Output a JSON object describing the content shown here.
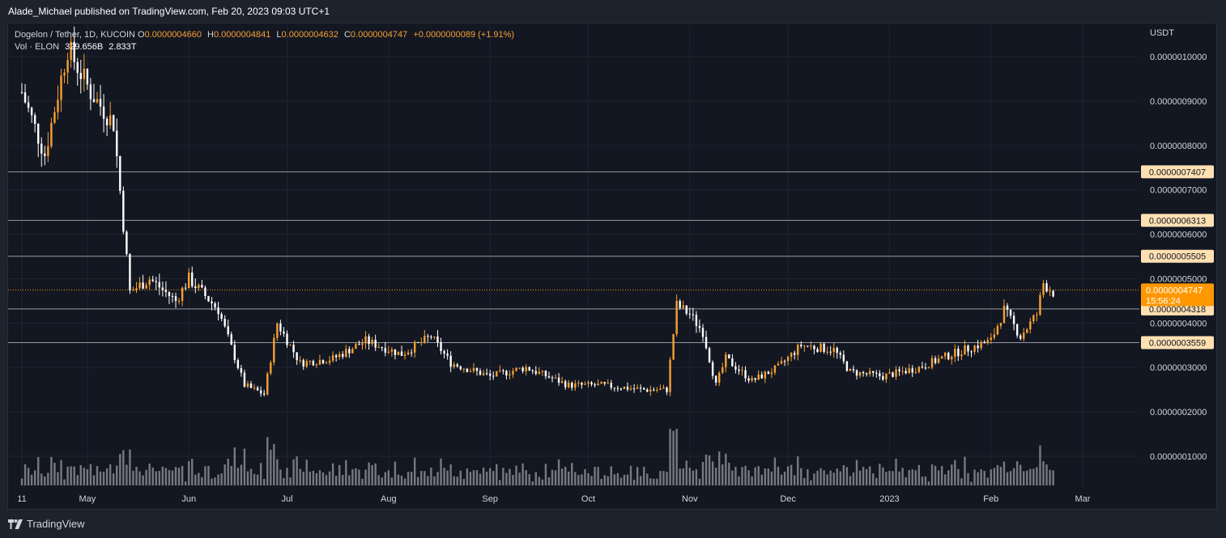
{
  "header": {
    "publisher_line": "Alade_Michael published on TradingView.com, Feb 20, 2023 09:03 UTC+1"
  },
  "legend": {
    "symbol": "Dogelon / Tether, 1D, KUCOIN",
    "open_label": "O",
    "open": "0.0000004660",
    "high_label": "H",
    "high": "0.0000004841",
    "low_label": "L",
    "low": "0.0000004632",
    "close_label": "C",
    "close": "0.0000004747",
    "change": "+0.0000000089 (+1.91%)",
    "vol_label": "Vol · ELON",
    "vol1": "329.656B",
    "vol2": "2.833T"
  },
  "footer": {
    "brand": "TradingView"
  },
  "colors": {
    "background": "#131722",
    "up": "#f7a030",
    "down": "#ffffff",
    "hline": "#9598a1",
    "current_price": "#ff9800",
    "level_label_bg": "#ffe0b2",
    "volume": "#9a9aa0"
  },
  "chart_data": {
    "type": "candlestick",
    "title": "Dogelon / Tether, 1D, KUCOIN",
    "y_unit": "USDT",
    "ylim": [
      0.0,
      1.02e-06
    ],
    "y_ticks": [
      "0.0000010000",
      "0.0000009000",
      "0.0000008000",
      "0.0000007000",
      "0.0000006000",
      "0.0000005000",
      "0.0000004000",
      "0.0000003000",
      "0.0000002000",
      "0.0000001000"
    ],
    "x_tick_labels": [
      "11",
      "May",
      "Jun",
      "Jul",
      "Aug",
      "Sep",
      "Oct",
      "Nov",
      "Dec",
      "2023",
      "Feb",
      "Mar"
    ],
    "horizontal_levels": [
      "0.0000007407",
      "0.0000006313",
      "0.0000005505",
      "0.0000004318",
      "0.0000003559"
    ],
    "current_price": {
      "value": "0.0000004747",
      "countdown": "15:56:24"
    },
    "grid": true,
    "approx_close_path": [
      {
        "date": "2022-04-11",
        "close": 9.2e-07
      },
      {
        "date": "2022-04-18",
        "close": 7.8e-07
      },
      {
        "date": "2022-04-25",
        "close": 1.02e-06
      },
      {
        "date": "2022-05-02",
        "close": 9.2e-07
      },
      {
        "date": "2022-05-09",
        "close": 8.5e-07
      },
      {
        "date": "2022-05-14",
        "close": 4.7e-07
      },
      {
        "date": "2022-05-20",
        "close": 5e-07
      },
      {
        "date": "2022-05-28",
        "close": 4.5e-07
      },
      {
        "date": "2022-06-01",
        "close": 5e-07
      },
      {
        "date": "2022-06-10",
        "close": 4.3e-07
      },
      {
        "date": "2022-06-18",
        "close": 2.6e-07
      },
      {
        "date": "2022-06-24",
        "close": 2.4e-07
      },
      {
        "date": "2022-06-28",
        "close": 4e-07
      },
      {
        "date": "2022-07-05",
        "close": 3.1e-07
      },
      {
        "date": "2022-07-15",
        "close": 3.2e-07
      },
      {
        "date": "2022-07-25",
        "close": 3.6e-07
      },
      {
        "date": "2022-08-05",
        "close": 3.3e-07
      },
      {
        "date": "2022-08-14",
        "close": 3.7e-07
      },
      {
        "date": "2022-08-20",
        "close": 3.1e-07
      },
      {
        "date": "2022-09-01",
        "close": 2.8e-07
      },
      {
        "date": "2022-09-12",
        "close": 3e-07
      },
      {
        "date": "2022-09-25",
        "close": 2.6e-07
      },
      {
        "date": "2022-10-05",
        "close": 2.6e-07
      },
      {
        "date": "2022-10-18",
        "close": 2.5e-07
      },
      {
        "date": "2022-10-25",
        "close": 2.5e-07
      },
      {
        "date": "2022-10-28",
        "close": 4.4e-07
      },
      {
        "date": "2022-11-01",
        "close": 4.2e-07
      },
      {
        "date": "2022-11-05",
        "close": 3.8e-07
      },
      {
        "date": "2022-11-09",
        "close": 2.6e-07
      },
      {
        "date": "2022-11-12",
        "close": 3.2e-07
      },
      {
        "date": "2022-11-20",
        "close": 2.7e-07
      },
      {
        "date": "2022-11-28",
        "close": 3e-07
      },
      {
        "date": "2022-12-05",
        "close": 3.5e-07
      },
      {
        "date": "2022-12-15",
        "close": 3.4e-07
      },
      {
        "date": "2022-12-20",
        "close": 2.9e-07
      },
      {
        "date": "2022-12-30",
        "close": 2.8e-07
      },
      {
        "date": "2023-01-10",
        "close": 3e-07
      },
      {
        "date": "2023-01-20",
        "close": 3.3e-07
      },
      {
        "date": "2023-02-01",
        "close": 3.6e-07
      },
      {
        "date": "2023-02-05",
        "close": 4.3e-07
      },
      {
        "date": "2023-02-10",
        "close": 3.7e-07
      },
      {
        "date": "2023-02-15",
        "close": 4.2e-07
      },
      {
        "date": "2023-02-17",
        "close": 4.9e-07
      },
      {
        "date": "2023-02-20",
        "close": 4.7e-07
      }
    ]
  }
}
